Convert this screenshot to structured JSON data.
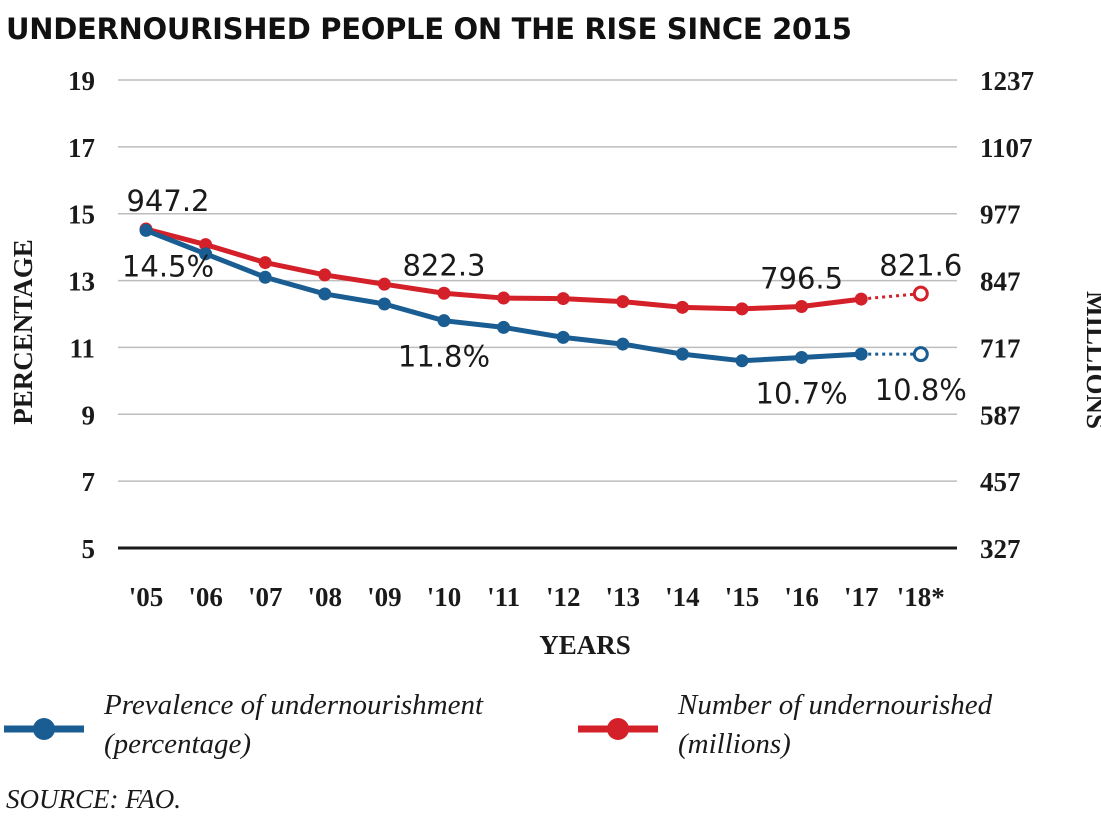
{
  "title": "UNDERNOURISHED PEOPLE ON THE RISE SINCE 2015",
  "source": "SOURCE: FAO.",
  "chart_data": {
    "type": "line",
    "categories": [
      "'05",
      "'06",
      "'07",
      "'08",
      "'09",
      "'10",
      "'11",
      "'12",
      "'13",
      "'14",
      "'15",
      "'16",
      "'17",
      "'18*"
    ],
    "xlabel": "YEARS",
    "ylabel_left": "PERCENTAGE",
    "ylabel_right": "MILLIONS",
    "yticks_left": [
      "19",
      "17",
      "15",
      "13",
      "11",
      "9",
      "7",
      "5"
    ],
    "yticks_right": [
      "1237",
      "1107",
      "977",
      "847",
      "717",
      "587",
      "457",
      "327"
    ],
    "ylim_left": [
      5,
      19
    ],
    "ylim_right": [
      327,
      1237
    ],
    "grid": true,
    "series": [
      {
        "name": "Number of undernourished (millions)",
        "legend_lines": [
          "Number of undernourished",
          "(millions)"
        ],
        "axis": "right",
        "color": "#d42029",
        "values": [
          947.2,
          917,
          882,
          858,
          840,
          822.3,
          813,
          812,
          806,
          795,
          792,
          796.5,
          811,
          821.6
        ],
        "projected_from_index": 12,
        "labels": [
          {
            "index": 0,
            "text": "947.2",
            "pos": "above"
          },
          {
            "index": 5,
            "text": "822.3",
            "pos": "above"
          },
          {
            "index": 11,
            "text": "796.5",
            "pos": "above"
          },
          {
            "index": 13,
            "text": "821.6",
            "pos": "above"
          }
        ]
      },
      {
        "name": "Prevalence of undernourishment (percentage)",
        "legend_lines": [
          "Prevalence of undernourishment",
          "(percentage)"
        ],
        "axis": "left",
        "color": "#1a5d92",
        "values": [
          14.5,
          13.8,
          13.1,
          12.6,
          12.3,
          11.8,
          11.6,
          11.3,
          11.1,
          10.8,
          10.6,
          10.7,
          10.8,
          10.8
        ],
        "projected_from_index": 12,
        "labels": [
          {
            "index": 0,
            "text": "14.5%",
            "pos": "below"
          },
          {
            "index": 5,
            "text": "11.8%",
            "pos": "below"
          },
          {
            "index": 11,
            "text": "10.7%",
            "pos": "below"
          },
          {
            "index": 13,
            "text": "10.8%",
            "pos": "below"
          }
        ]
      }
    ]
  }
}
